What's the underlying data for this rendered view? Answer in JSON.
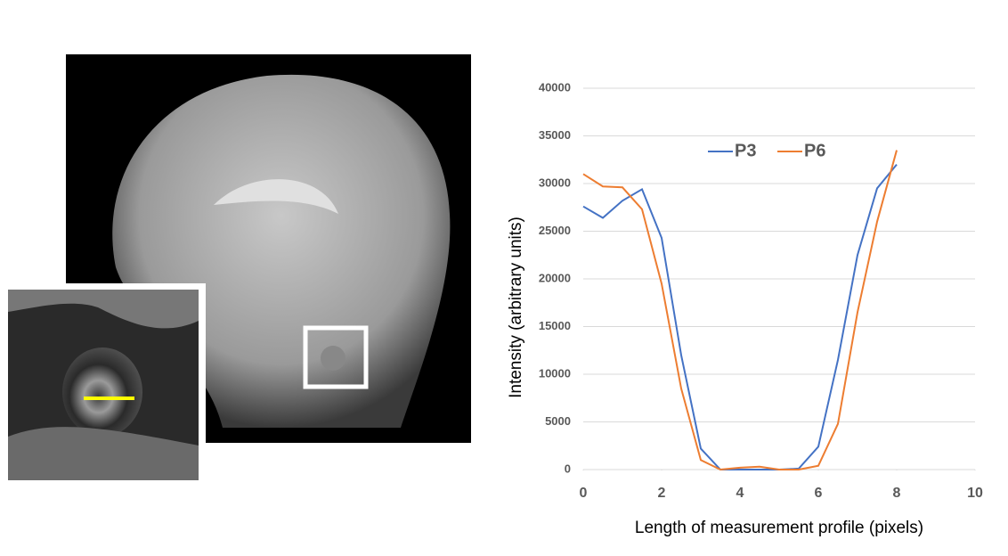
{
  "chart_data": {
    "type": "line",
    "x_label": "Length of measurement profile (pixels)",
    "y_label": "Intensity (arbitrary units)",
    "x": [
      0,
      0.5,
      1,
      1.5,
      2,
      2.5,
      3,
      3.5,
      4,
      4.5,
      5,
      5.5,
      6,
      6.5,
      7,
      7.5,
      8
    ],
    "series": [
      {
        "name": "P3",
        "color": "#4472c4",
        "values": [
          27600,
          26400,
          28200,
          29400,
          24300,
          12000,
          2200,
          0,
          0,
          0,
          0,
          100,
          2400,
          11500,
          22500,
          29500,
          32000
        ]
      },
      {
        "name": "P6",
        "color": "#ed7d31",
        "values": [
          31000,
          29700,
          29600,
          27300,
          19500,
          8500,
          1000,
          0,
          200,
          300,
          0,
          0,
          400,
          4800,
          16500,
          26000,
          33500
        ]
      }
    ],
    "xlim": [
      0,
      10
    ],
    "xticks": [
      0,
      2,
      4,
      6,
      8,
      10
    ],
    "ylim": [
      0,
      40000
    ],
    "yticks": [
      0,
      5000,
      10000,
      15000,
      20000,
      25000,
      30000,
      35000,
      40000
    ],
    "grid": true
  }
}
